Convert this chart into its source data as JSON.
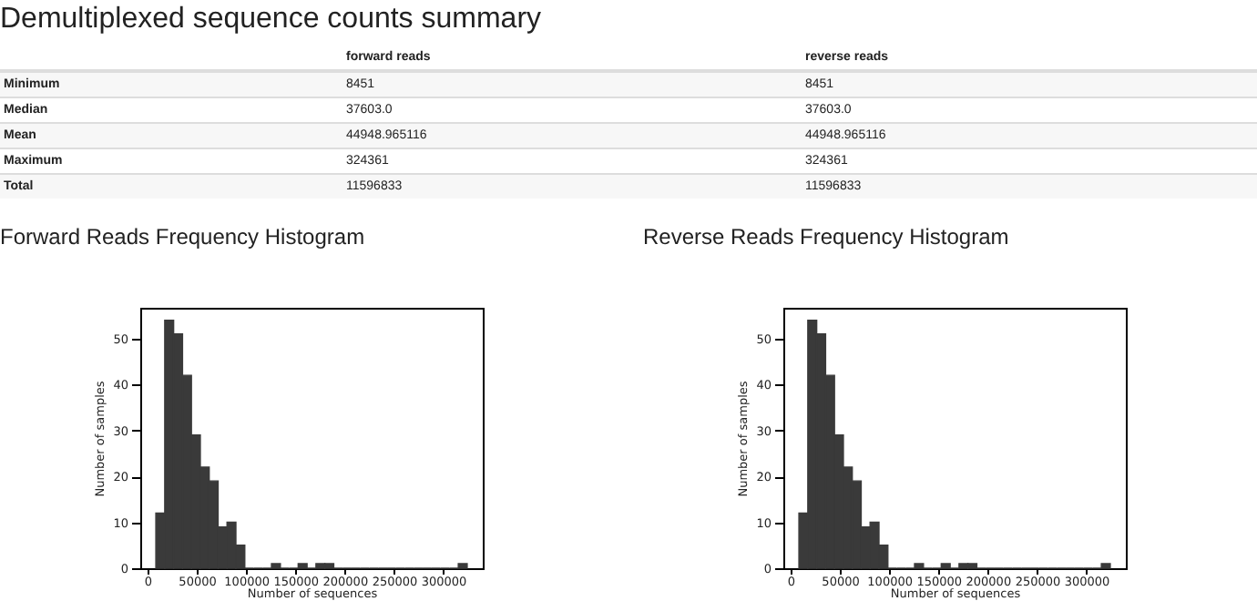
{
  "chart_data": [
    {
      "type": "other",
      "title": "Demultiplexed sequence counts summary",
      "categories": [
        "forward reads",
        "reverse reads"
      ],
      "y_categories": [
        "Minimum",
        "Median",
        "Mean",
        "Maximum",
        "Total"
      ],
      "cell_labels": [
        [
          "8451",
          "8451"
        ],
        [
          "37603.0",
          "37603.0"
        ],
        [
          "44948.965116",
          "44948.965116"
        ],
        [
          "324361",
          "324361"
        ],
        [
          "11596833",
          "11596833"
        ]
      ]
    },
    {
      "type": "histogram",
      "title": "Forward Reads Frequency Histogram",
      "xlabel": "Number of sequences",
      "ylabel": "Number of samples",
      "color": "#3a3a3a",
      "bins": [
        8451,
        17477,
        26503,
        35529,
        44555,
        53581,
        62607,
        71633,
        80659,
        89685,
        98711,
        107737,
        116763,
        125789,
        134815,
        143841,
        152867,
        161893,
        170919,
        179945,
        188971,
        197997,
        207023,
        216049,
        225075,
        234101,
        243127,
        252153,
        261179,
        270205,
        279231,
        288257,
        297283,
        306309,
        315335,
        324361
      ],
      "values": [
        12,
        54,
        51,
        42,
        29,
        22,
        19,
        9,
        10,
        5,
        0,
        0,
        0,
        1,
        0,
        0,
        1,
        0,
        1,
        1,
        0,
        0,
        0,
        0,
        0,
        0,
        0,
        0,
        0,
        0,
        0,
        0,
        0,
        0,
        1
      ],
      "xlim": [
        -7345,
        340157
      ],
      "ylim": [
        0,
        56.7
      ],
      "xticks": [
        0,
        50000,
        100000,
        150000,
        200000,
        250000,
        300000
      ],
      "yticks": [
        0,
        10,
        20,
        30,
        40,
        50
      ]
    },
    {
      "type": "histogram",
      "title": "Reverse Reads Frequency Histogram",
      "xlabel": "Number of sequences",
      "ylabel": "Number of samples",
      "color": "#3a3a3a",
      "bins": [
        8451,
        17477,
        26503,
        35529,
        44555,
        53581,
        62607,
        71633,
        80659,
        89685,
        98711,
        107737,
        116763,
        125789,
        134815,
        143841,
        152867,
        161893,
        170919,
        179945,
        188971,
        197997,
        207023,
        216049,
        225075,
        234101,
        243127,
        252153,
        261179,
        270205,
        279231,
        288257,
        297283,
        306309,
        315335,
        324361
      ],
      "values": [
        12,
        54,
        51,
        42,
        29,
        22,
        19,
        9,
        10,
        5,
        0,
        0,
        0,
        1,
        0,
        0,
        1,
        0,
        1,
        1,
        0,
        0,
        0,
        0,
        0,
        0,
        0,
        0,
        0,
        0,
        0,
        0,
        0,
        0,
        1
      ],
      "xlim": [
        -7345,
        340157
      ],
      "ylim": [
        0,
        56.7
      ],
      "xticks": [
        0,
        50000,
        100000,
        150000,
        200000,
        250000,
        300000
      ],
      "yticks": [
        0,
        10,
        20,
        30,
        40,
        50
      ]
    }
  ]
}
